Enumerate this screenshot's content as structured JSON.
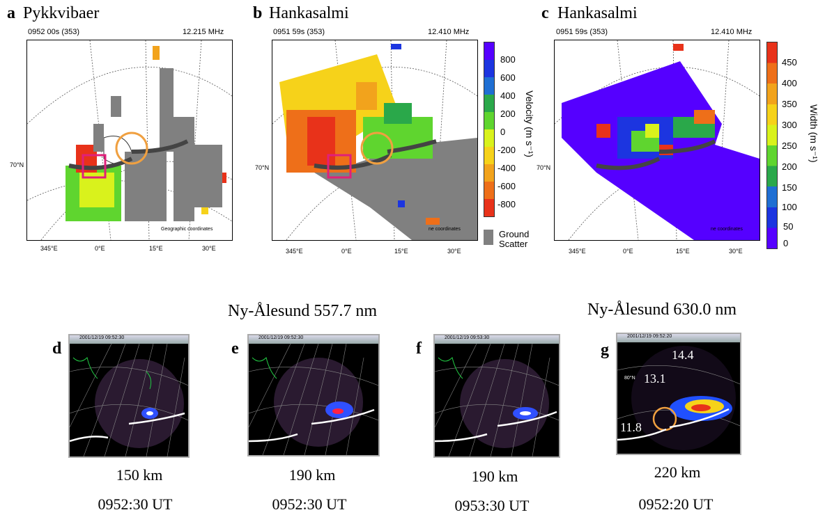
{
  "panels_top": [
    {
      "letter": "a",
      "station": "Pykkvibaer",
      "time": "0952 00s (353)",
      "freq": "12.215 MHz",
      "lon_ticks": [
        "345°E",
        "0°E",
        "15°E",
        "30°E"
      ],
      "lat": "70°N",
      "coord_note": "Geographic coordinates"
    },
    {
      "letter": "b",
      "station": "Hankasalmi",
      "time": "0951 59s (353)",
      "freq": "12.410 MHz",
      "lon_ticks": [
        "345°E",
        "0°E",
        "15°E",
        "30°E"
      ],
      "lat": "70°N",
      "coord_note": "ne coordinates"
    },
    {
      "letter": "c",
      "station": "Hankasalmi",
      "time": "0951 59s (353)",
      "freq": "12.410 MHz",
      "lon_ticks": [
        "345°E",
        "0°E",
        "15°E",
        "30°E"
      ],
      "lat": "70°N",
      "coord_note": "ne coordinates"
    }
  ],
  "velocity_bar": {
    "title": "Velocity (m s⁻¹)",
    "ticks": [
      "800",
      "600",
      "400",
      "200",
      "0",
      "-200",
      "-400",
      "-600",
      "-800"
    ],
    "ground": "Ground",
    "scatter": "Scatter"
  },
  "width_bar": {
    "title": "Width (m s⁻¹)",
    "ticks": [
      "450",
      "400",
      "350",
      "300",
      "250",
      "200",
      "150",
      "100",
      "50",
      "0"
    ]
  },
  "asi_titles": {
    "green": "Ny-Ålesund 557.7 nm",
    "red": "Ny-Ålesund 630.0 nm"
  },
  "asi": [
    {
      "letter": "d",
      "stamp": "2001/12/19 09:52:30",
      "height": "150 km",
      "time": "0952:30 UT"
    },
    {
      "letter": "e",
      "stamp": "2001/12/19 09:52:30",
      "height": "190 km",
      "time": "0952:30 UT"
    },
    {
      "letter": "f",
      "stamp": "2001/12/19 09:53:30",
      "height": "190 km",
      "time": "0953:30 UT"
    },
    {
      "letter": "g",
      "stamp": "2001/12/19 09:52:20",
      "height": "220 km",
      "time": "0952:20 UT",
      "labels": [
        "14.4",
        "13.1",
        "11.8"
      ],
      "lat_label": "80°N"
    }
  ],
  "colors": {
    "velocity": [
      "#5500ff",
      "#1c35e0",
      "#1f6fd3",
      "#2aa84a",
      "#5fd52f",
      "#d9f21c",
      "#f6d21a",
      "#f2a31c",
      "#ee6f19",
      "#e8321a"
    ],
    "ground": "#808080",
    "circle": "#f0a040",
    "box": "#e0207a"
  }
}
